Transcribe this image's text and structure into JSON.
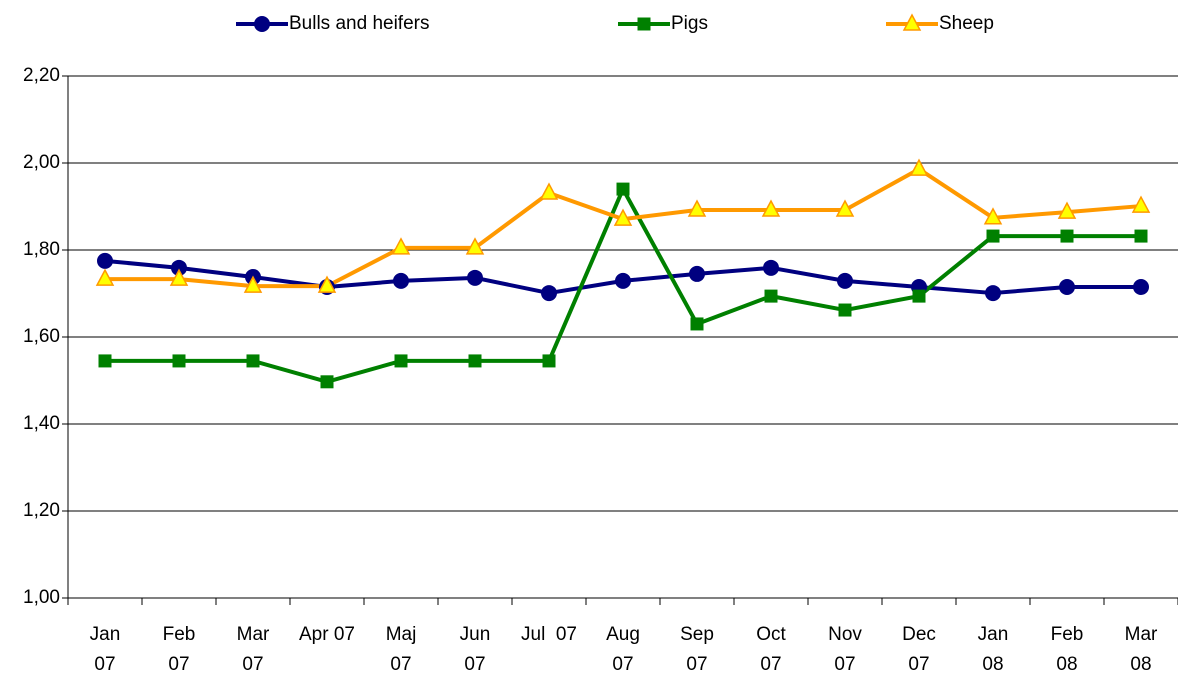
{
  "chart_data": {
    "type": "line",
    "categories": [
      "Jan\n07",
      "Feb\n07",
      "Mar\n07",
      "Apr 07",
      "Maj\n07",
      "Jun\n07",
      "Jul  07",
      "Aug\n07",
      "Sep\n07",
      "Oct\n07",
      "Nov\n07",
      "Dec\n07",
      "Jan\n08",
      "Feb\n08",
      "Mar\n08"
    ],
    "series": [
      {
        "name": "Bulls and heifers",
        "color": "#000080",
        "marker": "circle",
        "values": [
          1.775,
          1.759,
          1.738,
          1.715,
          1.729,
          1.736,
          1.701,
          1.729,
          1.745,
          1.759,
          1.729,
          1.715,
          1.701,
          1.715,
          1.715
        ]
      },
      {
        "name": "Pigs",
        "color": "#008000",
        "marker": "square",
        "values": [
          1.545,
          1.545,
          1.545,
          1.497,
          1.545,
          1.545,
          1.545,
          1.94,
          1.63,
          1.694,
          1.662,
          1.694,
          1.832,
          1.832,
          1.832
        ]
      },
      {
        "name": "Sheep",
        "color": "#FF9900",
        "marker": "triangle",
        "values": [
          1.733,
          1.733,
          1.717,
          1.717,
          1.805,
          1.805,
          1.931,
          1.871,
          1.892,
          1.892,
          1.892,
          1.986,
          1.874,
          1.887,
          1.901
        ]
      }
    ],
    "ylim": [
      1.0,
      2.2
    ],
    "yticks": [
      {
        "value": 1.0,
        "label": "1,00"
      },
      {
        "value": 1.2,
        "label": "1,20"
      },
      {
        "value": 1.4,
        "label": "1,40"
      },
      {
        "value": 1.6,
        "label": "1,60"
      },
      {
        "value": 1.8,
        "label": "1,80"
      },
      {
        "value": 2.0,
        "label": "2,00"
      },
      {
        "value": 2.2,
        "label": "2,20"
      }
    ],
    "grid": true,
    "legend": "top"
  }
}
